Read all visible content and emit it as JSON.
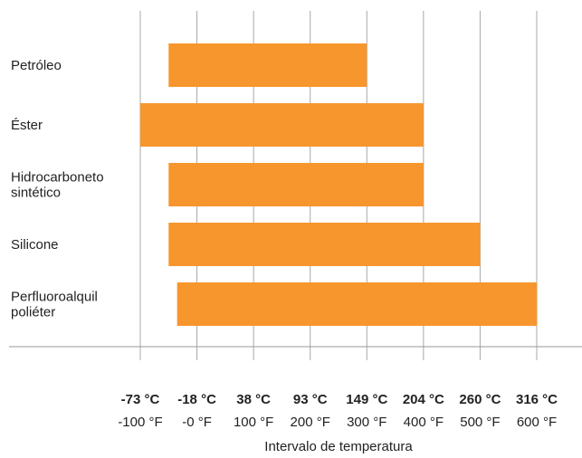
{
  "chart_data": {
    "type": "bar",
    "orientation": "horizontal",
    "bar_style": "range",
    "bar_color": "#F7962D",
    "gridlines": true,
    "categories": [
      [
        "Petróleo"
      ],
      [
        "Éster"
      ],
      [
        "Hidrocarboneto",
        "sintético"
      ],
      [
        "Silicone"
      ],
      [
        "Perfluoroalquil",
        "poliéter"
      ]
    ],
    "ranges_f": [
      [
        -50,
        300
      ],
      [
        -100,
        400
      ],
      [
        -50,
        400
      ],
      [
        -50,
        500
      ],
      [
        -35,
        600
      ]
    ],
    "xlim_f": [
      -100,
      600
    ],
    "ticks_f": [
      -100,
      0,
      100,
      200,
      300,
      400,
      500,
      600
    ],
    "tick_labels_c": [
      "-73 °C",
      "-18 °C",
      "38 °C",
      "93 °C",
      "149 °C",
      "204 °C",
      "260 °C",
      "316 °C"
    ],
    "tick_labels_f": [
      "-100 °F",
      "-0 °F",
      "100 °F",
      "200 °F",
      "300 °F",
      "400 °F",
      "500 °F",
      "600 °F"
    ],
    "xlabel": "Intervalo de temperatura"
  }
}
